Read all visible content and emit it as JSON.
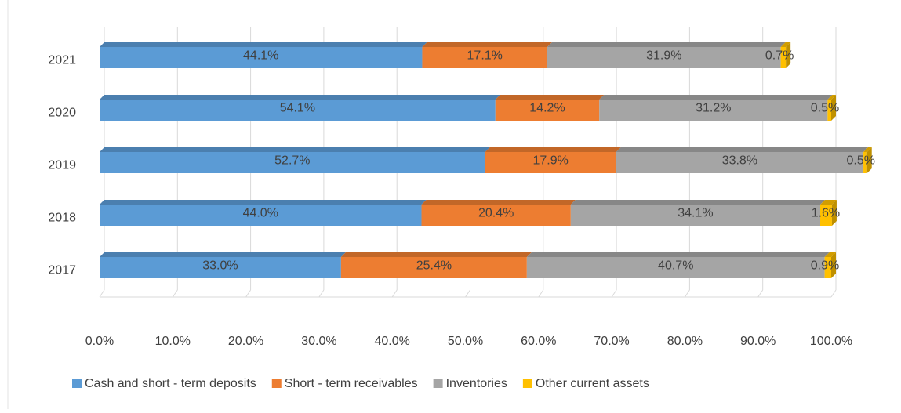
{
  "chart_data": {
    "type": "stacked_barh",
    "categories": [
      "2017",
      "2018",
      "2019",
      "2020",
      "2021"
    ],
    "series": [
      {
        "name": "Cash and short - term deposits",
        "color": "#5b9bd5",
        "values": [
          33.0,
          44.0,
          52.7,
          54.1,
          44.1
        ],
        "value_labels": [
          "33.0%",
          "44.0%",
          "52.7%",
          "54.1%",
          "44.1%"
        ]
      },
      {
        "name": "Short - term receivables",
        "color": "#ed7d31",
        "values": [
          25.4,
          20.4,
          17.9,
          14.2,
          17.1
        ],
        "value_labels": [
          "25.4%",
          "20.4%",
          "17.9%",
          "14.2%",
          "17.1%"
        ]
      },
      {
        "name": "Inventories",
        "color": "#a5a5a5",
        "values": [
          40.7,
          34.1,
          33.8,
          31.2,
          31.9
        ],
        "value_labels": [
          "40.7%",
          "34.1%",
          "33.8%",
          "31.2%",
          "31.9%"
        ]
      },
      {
        "name": "Other current assets",
        "color": "#ffc000",
        "values": [
          0.9,
          1.6,
          0.5,
          0.5,
          0.7
        ],
        "value_labels": [
          "0.9%",
          "1.6%",
          "0.5%",
          "0.5%",
          "0.7%"
        ]
      }
    ],
    "xlim": [
      0,
      100
    ],
    "xticks": [
      {
        "value": 0,
        "label": "0.0%"
      },
      {
        "value": 10,
        "label": "10.0%"
      },
      {
        "value": 20,
        "label": "20.0%"
      },
      {
        "value": 30,
        "label": "30.0%"
      },
      {
        "value": 40,
        "label": "40.0%"
      },
      {
        "value": 50,
        "label": "50.0%"
      },
      {
        "value": 60,
        "label": "60.0%"
      },
      {
        "value": 70,
        "label": "70.0%"
      },
      {
        "value": 80,
        "label": "80.0%"
      },
      {
        "value": 90,
        "label": "90.0%"
      },
      {
        "value": 100,
        "label": "100.0%"
      }
    ],
    "grid": true,
    "legend": "bottom"
  }
}
